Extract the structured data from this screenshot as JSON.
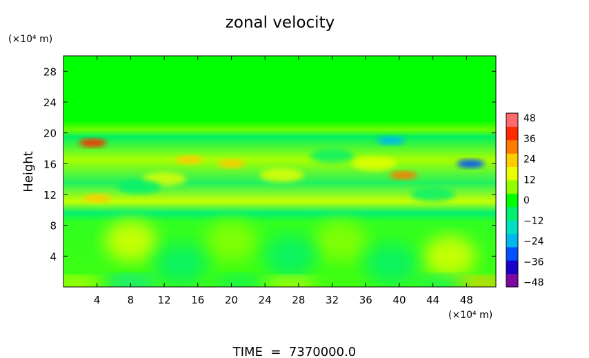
{
  "chart_data": {
    "type": "heatmap",
    "title": "zonal velocity",
    "ylabel": "Height",
    "y_units": "(×10⁴ m)",
    "x_units": "(×10⁴ m)",
    "footer": "TIME  =  7370000.0",
    "xlim": [
      0,
      51.5
    ],
    "ylim": [
      0,
      30
    ],
    "x_ticks": [
      "4",
      "8",
      "12",
      "16",
      "20",
      "24",
      "28",
      "32",
      "36",
      "40",
      "44",
      "48"
    ],
    "x_tick_values": [
      4,
      8,
      12,
      16,
      20,
      24,
      28,
      32,
      36,
      40,
      44,
      48
    ],
    "y_ticks": [
      "4",
      "8",
      "12",
      "16",
      "20",
      "24",
      "28"
    ],
    "y_tick_values": [
      4,
      8,
      12,
      16,
      20,
      24,
      28
    ],
    "colorbar": {
      "range": [
        -48,
        48
      ],
      "tick_labels": [
        "48",
        "36",
        "24",
        "12",
        "0",
        "−12",
        "−24",
        "−36",
        "−48"
      ],
      "tick_values": [
        48,
        36,
        24,
        12,
        0,
        -12,
        -24,
        -36,
        -48
      ],
      "colors": [
        "#7a0aa0",
        "#1a00c8",
        "#0050ff",
        "#00b8f0",
        "#00e0c0",
        "#00f070",
        "#00ff00",
        "#90ff00",
        "#e8ff00",
        "#ffcc00",
        "#ff7a00",
        "#ff2a00",
        "#ff6a6a"
      ]
    },
    "features": [
      {
        "x": 8,
        "y": 6,
        "value": 14
      },
      {
        "x": 20,
        "y": 6,
        "value": 8
      },
      {
        "x": 33,
        "y": 6,
        "value": 10
      },
      {
        "x": 46,
        "y": 4,
        "value": 14
      },
      {
        "x": 14,
        "y": 3,
        "value": -6
      },
      {
        "x": 27,
        "y": 4,
        "value": -5
      },
      {
        "x": 39,
        "y": 3,
        "value": -5
      },
      {
        "x": 8,
        "y": 0.6,
        "value": -14
      },
      {
        "x": 21,
        "y": 0.6,
        "value": -10
      },
      {
        "x": 45,
        "y": 0.6,
        "value": -12
      },
      {
        "x": 1.5,
        "y": 0.4,
        "value": 18
      },
      {
        "x": 27,
        "y": 0.4,
        "value": 16
      },
      {
        "x": 50,
        "y": 0.4,
        "value": 20
      },
      {
        "x": 3.5,
        "y": 18.7,
        "value": 40
      },
      {
        "x": 39,
        "y": 19,
        "value": -22
      },
      {
        "x": 48.5,
        "y": 16,
        "value": -30
      },
      {
        "x": 15,
        "y": 16.5,
        "value": 22
      },
      {
        "x": 20,
        "y": 16,
        "value": 20
      },
      {
        "x": 37,
        "y": 16,
        "value": 18
      },
      {
        "x": 4,
        "y": 11.5,
        "value": 26
      },
      {
        "x": 12,
        "y": 14,
        "value": 15
      },
      {
        "x": 26,
        "y": 14.5,
        "value": 16
      },
      {
        "x": 40.5,
        "y": 14.5,
        "value": 28
      },
      {
        "x": 32,
        "y": 17,
        "value": -10
      },
      {
        "x": 9,
        "y": 13,
        "value": -8
      },
      {
        "x": 44,
        "y": 12,
        "value": -9
      }
    ]
  }
}
